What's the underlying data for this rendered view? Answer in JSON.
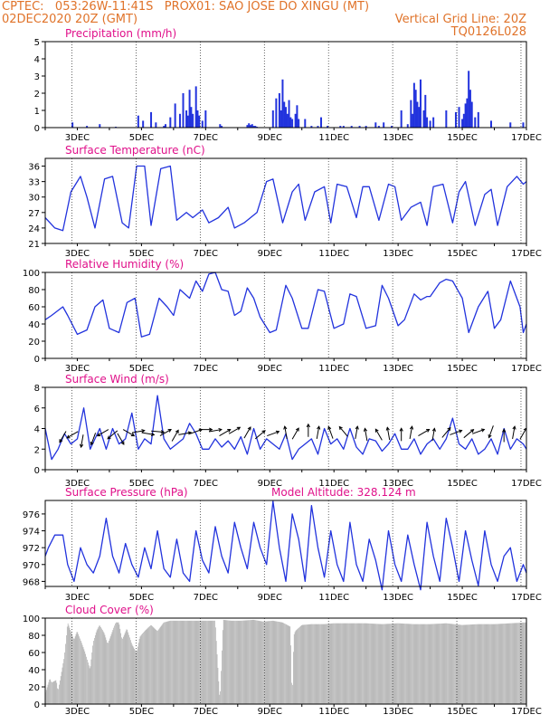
{
  "header": {
    "line1": "CPTEC:   053:26W-11:41S   PROX01: SAO JOSE DO XINGU (MT)",
    "line2_left": "02DEC2020 20Z (GMT)",
    "line2_right": "Vertical Grid Line: 20Z",
    "line3_right": "TQ0126L028",
    "color": "#e0732a"
  },
  "colors": {
    "title": "#e0108a",
    "series": "#2233dd",
    "bars": "#2233dd",
    "cloud": "#a8a8a8",
    "wind_arrows": "#000000"
  },
  "x_axis": {
    "start_day": 2.0,
    "end_day": 17.0,
    "tick_labels": [
      "3DEC",
      "5DEC",
      "7DEC",
      "9DEC",
      "11DEC",
      "13DEC",
      "15DEC",
      "17DEC"
    ]
  },
  "chart_data": [
    {
      "type": "bar",
      "title": "Precipitation (mm/h)",
      "ylim": [
        0,
        5
      ],
      "yticks": [
        "0",
        "1",
        "2",
        "3",
        "4",
        "5"
      ],
      "x": [
        2.85,
        3.3,
        3.7,
        4.2,
        4.9,
        5.05,
        5.3,
        5.45,
        5.7,
        5.75,
        5.9,
        6.05,
        6.2,
        6.3,
        6.4,
        6.45,
        6.5,
        6.55,
        6.6,
        6.7,
        6.75,
        6.8,
        6.9,
        7.0,
        7.45,
        7.5,
        8.3,
        8.35,
        8.4,
        8.45,
        8.5,
        8.55,
        8.6,
        9.1,
        9.2,
        9.3,
        9.35,
        9.4,
        9.45,
        9.5,
        9.55,
        9.6,
        9.65,
        9.7,
        9.8,
        9.85,
        9.9,
        10.1,
        10.3,
        10.5,
        10.6,
        10.8,
        11.2,
        11.3,
        11.55,
        11.8,
        12.0,
        12.3,
        12.4,
        12.55,
        12.8,
        13.1,
        13.3,
        13.4,
        13.45,
        13.5,
        13.55,
        13.6,
        13.65,
        13.7,
        13.8,
        13.85,
        13.9,
        14.0,
        14.1,
        14.5,
        14.8,
        14.9,
        15.0,
        15.05,
        15.1,
        15.15,
        15.2,
        15.25,
        15.3,
        15.4,
        15.5,
        15.9,
        16.5,
        16.9
      ],
      "values": [
        0.3,
        0.1,
        0.2,
        0.05,
        0.7,
        0.4,
        0.9,
        0.3,
        0.1,
        0.2,
        0.6,
        1.4,
        0.8,
        2.0,
        1.0,
        0.7,
        2.2,
        1.2,
        0.8,
        2.4,
        1.0,
        0.7,
        0.4,
        1.0,
        0.2,
        0.1,
        0.15,
        0.25,
        0.15,
        0.2,
        0.1,
        0.1,
        0.05,
        1.0,
        1.7,
        2.0,
        1.0,
        2.8,
        1.5,
        1.2,
        0.8,
        1.6,
        0.6,
        0.5,
        0.8,
        1.3,
        0.5,
        0.5,
        0.1,
        0.1,
        0.6,
        0.1,
        0.1,
        0.1,
        0.1,
        0.1,
        0.1,
        0.3,
        0.1,
        0.3,
        0.1,
        1.0,
        0.2,
        1.6,
        0.8,
        2.6,
        2.2,
        1.5,
        1.2,
        2.8,
        1.0,
        1.9,
        0.6,
        0.4,
        0.6,
        1.0,
        0.9,
        1.2,
        0.5,
        0.8,
        1.4,
        1.7,
        3.3,
        2.2,
        1.5,
        0.6,
        0.9,
        0.4,
        0.3,
        0.3
      ]
    },
    {
      "type": "line",
      "title": "Surface Temperature (nC)",
      "ylim": [
        21,
        37.5
      ],
      "yticks": [
        "21",
        "24",
        "27",
        "30",
        "33",
        "36"
      ],
      "x": [
        2.0,
        2.3,
        2.55,
        2.8,
        3.1,
        3.3,
        3.55,
        3.85,
        4.1,
        4.4,
        4.6,
        4.85,
        5.1,
        5.3,
        5.6,
        5.9,
        6.1,
        6.4,
        6.6,
        6.9,
        7.1,
        7.4,
        7.7,
        7.9,
        8.2,
        8.6,
        8.9,
        9.1,
        9.4,
        9.7,
        9.9,
        10.1,
        10.4,
        10.7,
        10.9,
        11.1,
        11.4,
        11.7,
        11.9,
        12.1,
        12.4,
        12.7,
        12.9,
        13.1,
        13.4,
        13.7,
        13.9,
        14.1,
        14.4,
        14.7,
        14.9,
        15.1,
        15.4,
        15.7,
        15.9,
        16.1,
        16.4,
        16.7,
        16.9,
        17.0
      ],
      "values": [
        26,
        24,
        23.5,
        31,
        34,
        30,
        24,
        33.5,
        34,
        25,
        24,
        36,
        36,
        24.5,
        35.5,
        36,
        25.5,
        27,
        26,
        27.5,
        25,
        26,
        28,
        24,
        25,
        27,
        33,
        33.5,
        25,
        31,
        32.5,
        25.5,
        31,
        32,
        25,
        32.5,
        32,
        26,
        32,
        32,
        25.5,
        32.5,
        32,
        25.5,
        28,
        29,
        24.5,
        32,
        32.5,
        25,
        31,
        33,
        24.5,
        30.5,
        31.5,
        24.5,
        32,
        34,
        32.5,
        33
      ]
    },
    {
      "type": "line",
      "title": "Relative Humidity (%)",
      "ylim": [
        0,
        100
      ],
      "yticks": [
        "0",
        "20",
        "40",
        "60",
        "80",
        "100"
      ],
      "x": [
        2.0,
        2.2,
        2.55,
        2.7,
        3.0,
        3.3,
        3.55,
        3.8,
        4.0,
        4.3,
        4.55,
        4.8,
        5.0,
        5.25,
        5.55,
        5.8,
        6.0,
        6.2,
        6.5,
        6.7,
        6.9,
        7.1,
        7.3,
        7.5,
        7.7,
        7.9,
        8.1,
        8.3,
        8.5,
        8.7,
        9.0,
        9.2,
        9.5,
        9.7,
        10.0,
        10.2,
        10.5,
        10.7,
        11.0,
        11.3,
        11.5,
        11.7,
        12.0,
        12.3,
        12.5,
        12.7,
        13.0,
        13.2,
        13.5,
        13.7,
        13.9,
        14.0,
        14.3,
        14.5,
        14.7,
        15.0,
        15.2,
        15.5,
        15.8,
        16.0,
        16.2,
        16.5,
        16.8,
        16.9,
        17.0
      ],
      "values": [
        45,
        50,
        60,
        50,
        28,
        33,
        60,
        68,
        35,
        30,
        65,
        70,
        25,
        28,
        70,
        60,
        50,
        80,
        70,
        90,
        78,
        98,
        100,
        80,
        78,
        50,
        55,
        82,
        70,
        48,
        30,
        33,
        85,
        70,
        35,
        35,
        80,
        78,
        35,
        40,
        75,
        72,
        35,
        38,
        85,
        70,
        38,
        45,
        75,
        68,
        72,
        72,
        88,
        92,
        90,
        70,
        30,
        60,
        78,
        35,
        45,
        90,
        60,
        30,
        40
      ]
    },
    {
      "type": "line",
      "title": "Surface Wind (m/s)",
      "ylim": [
        0,
        8
      ],
      "yticks": [
        "0",
        "2",
        "4",
        "6",
        "8"
      ],
      "x": [
        2.0,
        2.2,
        2.4,
        2.6,
        2.8,
        3.0,
        3.2,
        3.4,
        3.55,
        3.7,
        3.9,
        4.1,
        4.3,
        4.5,
        4.7,
        4.9,
        5.1,
        5.3,
        5.5,
        5.7,
        5.9,
        6.1,
        6.3,
        6.5,
        6.7,
        6.9,
        7.1,
        7.3,
        7.5,
        7.7,
        7.9,
        8.1,
        8.3,
        8.5,
        8.7,
        8.9,
        9.1,
        9.3,
        9.5,
        9.7,
        9.9,
        10.1,
        10.3,
        10.5,
        10.7,
        10.9,
        11.1,
        11.3,
        11.5,
        11.7,
        11.9,
        12.1,
        12.3,
        12.5,
        12.7,
        12.9,
        13.1,
        13.3,
        13.5,
        13.7,
        13.9,
        14.1,
        14.3,
        14.5,
        14.7,
        14.9,
        15.1,
        15.3,
        15.5,
        15.7,
        15.9,
        16.1,
        16.3,
        16.5,
        16.7,
        16.9,
        17.0
      ],
      "values": [
        4,
        1,
        2,
        3.5,
        2.5,
        3,
        6,
        2,
        3,
        4,
        2,
        4,
        2.5,
        3,
        5.5,
        2,
        3,
        2.5,
        7.2,
        3,
        2,
        2.5,
        3,
        4.5,
        3.5,
        2,
        2,
        3,
        2.2,
        2.8,
        2,
        3.2,
        1.5,
        4,
        2,
        3,
        2.5,
        2,
        3.5,
        1,
        2,
        2.5,
        3,
        1.5,
        4,
        2.5,
        3,
        2,
        4,
        2.2,
        1.5,
        3,
        2.8,
        1.8,
        2.5,
        3.5,
        2,
        2,
        3,
        1.5,
        2.5,
        3,
        2,
        3,
        5,
        2.5,
        2,
        3,
        1.5,
        2,
        3,
        1.5,
        4,
        2,
        3,
        2.5,
        2
      ]
    },
    {
      "type": "line",
      "title": "Surface Pressure (hPa)",
      "annotation": "Model Altitude: 328.124 m",
      "ylim": [
        967.4,
        977.6
      ],
      "yticks": [
        "968",
        "970",
        "972",
        "974",
        "976"
      ],
      "x": [
        2.0,
        2.1,
        2.3,
        2.55,
        2.7,
        2.9,
        3.1,
        3.3,
        3.5,
        3.7,
        3.9,
        4.1,
        4.3,
        4.5,
        4.7,
        4.9,
        5.1,
        5.3,
        5.5,
        5.7,
        5.9,
        6.1,
        6.3,
        6.5,
        6.7,
        6.9,
        7.1,
        7.3,
        7.5,
        7.7,
        7.9,
        8.1,
        8.3,
        8.5,
        8.7,
        8.9,
        9.1,
        9.3,
        9.5,
        9.7,
        9.9,
        10.1,
        10.3,
        10.5,
        10.7,
        10.9,
        11.1,
        11.3,
        11.5,
        11.7,
        11.9,
        12.1,
        12.3,
        12.5,
        12.7,
        12.9,
        13.1,
        13.3,
        13.5,
        13.7,
        13.9,
        14.1,
        14.3,
        14.5,
        14.7,
        14.9,
        15.1,
        15.3,
        15.5,
        15.7,
        15.9,
        16.1,
        16.3,
        16.5,
        16.7,
        16.9,
        17.0
      ],
      "values": [
        971,
        972,
        973.5,
        973.5,
        970,
        968,
        972,
        970,
        969,
        971,
        975.5,
        971,
        969,
        972.5,
        970,
        968.5,
        972,
        969.5,
        974,
        969.5,
        968.5,
        973,
        969,
        968,
        974,
        970.5,
        969,
        974.5,
        971,
        969,
        975,
        972,
        969.5,
        975,
        972,
        970,
        977.5,
        972,
        968,
        976,
        973,
        968,
        977,
        972,
        968.5,
        974,
        970,
        968,
        975,
        970,
        968,
        973,
        970.5,
        967,
        974,
        970,
        968,
        973.5,
        970,
        967,
        975,
        971,
        968,
        975.5,
        972,
        968,
        974,
        970.5,
        967.5,
        974,
        970,
        968,
        971,
        972,
        968,
        970,
        969
      ]
    },
    {
      "type": "area",
      "title": "Cloud Cover (%)",
      "ylim": [
        0,
        100
      ],
      "yticks": [
        "0",
        "20",
        "40",
        "60",
        "80",
        "100"
      ],
      "x": [
        2.0,
        2.15,
        2.2,
        2.35,
        2.4,
        2.6,
        2.7,
        2.9,
        3.0,
        3.15,
        3.25,
        3.4,
        3.5,
        3.6,
        3.7,
        3.85,
        3.95,
        4.1,
        4.2,
        4.3,
        4.4,
        4.55,
        4.7,
        4.85,
        4.95,
        5.1,
        5.3,
        5.5,
        5.7,
        5.9,
        6.1,
        6.4,
        6.7,
        7.0,
        7.3,
        7.45,
        7.55,
        7.8,
        8.1,
        8.5,
        8.8,
        9.1,
        9.4,
        9.65,
        9.7,
        9.75,
        9.8,
        10.0,
        10.3,
        10.7,
        11.0,
        11.5,
        12.0,
        12.5,
        13.0,
        13.5,
        14.0,
        14.5,
        15.0,
        15.5,
        16.0,
        16.5,
        17.0
      ],
      "values": [
        12,
        30,
        25,
        28,
        15,
        55,
        95,
        75,
        85,
        70,
        60,
        40,
        72,
        85,
        92,
        82,
        70,
        85,
        95,
        95,
        75,
        88,
        70,
        60,
        78,
        85,
        92,
        85,
        95,
        97,
        97,
        97,
        97,
        97,
        97,
        3,
        98,
        97,
        97,
        98,
        96,
        97,
        95,
        90,
        3,
        80,
        85,
        92,
        93,
        93,
        94,
        94,
        94,
        93,
        94,
        93,
        93,
        94,
        92,
        93,
        93,
        94,
        95
      ]
    }
  ],
  "wind_arrows": {
    "x": [
      2.55,
      2.85,
      3.15,
      3.5,
      3.8,
      4.1,
      4.35,
      4.6,
      4.9,
      5.2,
      5.5,
      5.75,
      6.05,
      6.35,
      6.7,
      7.0,
      7.3,
      7.6,
      7.9,
      8.3,
      8.7,
      9.1,
      9.5,
      9.8,
      10.2,
      10.5,
      10.9,
      11.3,
      11.7,
      12.0,
      12.4,
      12.7,
      13.1,
      13.4,
      13.8,
      14.1,
      14.5,
      14.8,
      15.2,
      15.5,
      15.9,
      16.3,
      16.6,
      16.9
    ],
    "angle_deg": [
      240,
      210,
      260,
      250,
      210,
      220,
      300,
      330,
      10,
      350,
      355,
      30,
      60,
      10,
      20,
      0,
      10,
      30,
      30,
      60,
      40,
      20,
      100,
      60,
      90,
      80,
      110,
      130,
      80,
      100,
      120,
      100,
      90,
      80,
      30,
      80,
      50,
      20,
      40,
      20,
      250,
      90,
      80,
      60
    ],
    "y": [
      3.2,
      3.4,
      2.8,
      3.0,
      3.6,
      3.4,
      3.0,
      3.6,
      3.7,
      3.5,
      3.7,
      3.6,
      3.3,
      3.5,
      3.7,
      3.9,
      3.8,
      3.6,
      3.8,
      3.6,
      3.4,
      3.5,
      3.6,
      3.5,
      3.8,
      3.6,
      3.6,
      3.7,
      3.6,
      3.4,
      3.4,
      3.5,
      3.4,
      3.6,
      3.6,
      3.4,
      3.6,
      3.6,
      3.5,
      3.7,
      3.7,
      3.3,
      3.6,
      3.5
    ]
  }
}
